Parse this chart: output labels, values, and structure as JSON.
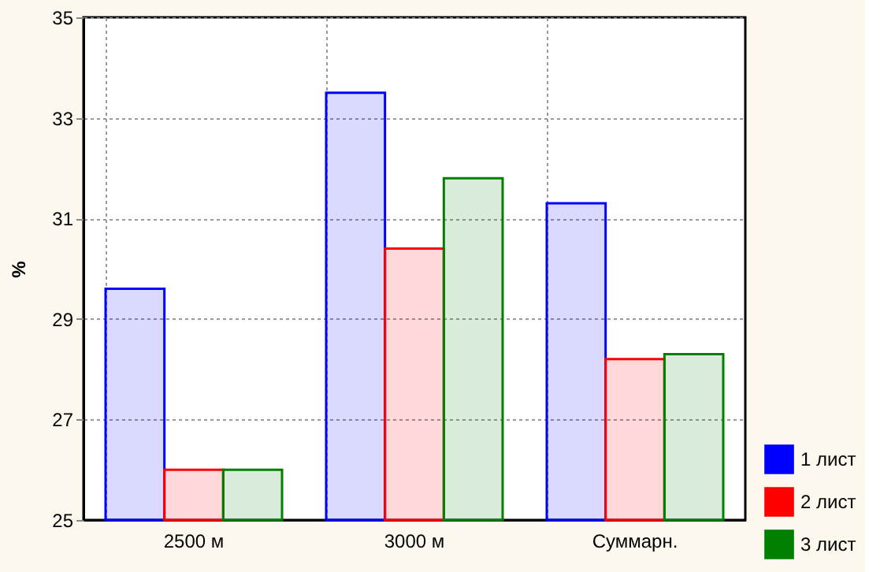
{
  "chart_data": {
    "type": "bar",
    "ylabel": "%",
    "categories": [
      "2500 м",
      "3000 м",
      "Суммарн."
    ],
    "series": [
      {
        "name": "1 лист",
        "color": "#0000ff",
        "values": [
          29.6,
          33.5,
          31.3
        ]
      },
      {
        "name": "2 лист",
        "color": "#ff0000",
        "values": [
          26.0,
          30.4,
          28.2
        ]
      },
      {
        "name": "3 лист",
        "color": "#008000",
        "values": [
          26.0,
          31.8,
          28.3
        ]
      }
    ],
    "ylim": [
      25,
      35
    ],
    "yticks": [
      25,
      27,
      29,
      31,
      33,
      35
    ],
    "grid": true,
    "legend": "bottom right"
  }
}
